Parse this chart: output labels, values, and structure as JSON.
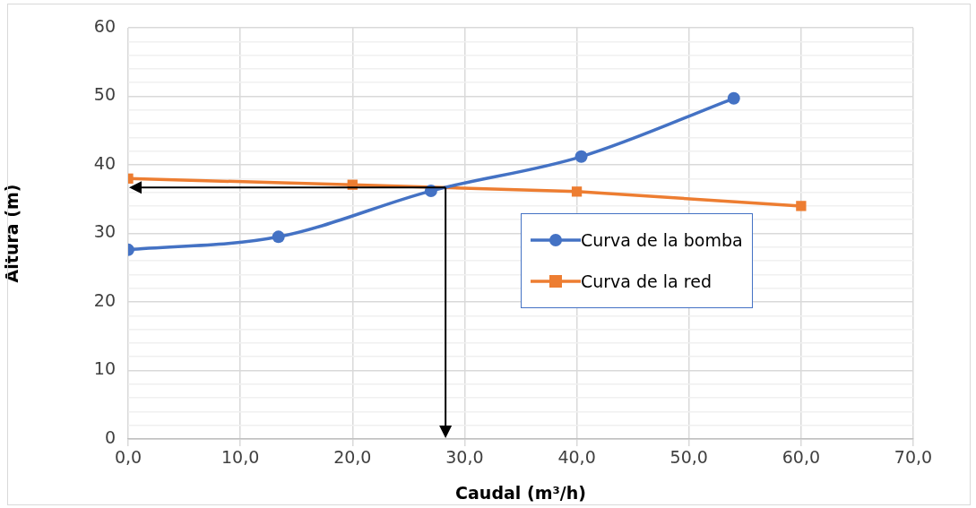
{
  "chart_data": {
    "type": "line",
    "xlabel": "Caudal (m³/h)",
    "ylabel": "Altura (m)",
    "xlim": [
      0,
      70
    ],
    "xticks": [
      {
        "value": 0,
        "label": "0,0"
      },
      {
        "value": 10,
        "label": "10,0"
      },
      {
        "value": 20,
        "label": "20,0"
      },
      {
        "value": 30,
        "label": "30,0"
      },
      {
        "value": 40,
        "label": "40,0"
      },
      {
        "value": 50,
        "label": "50,0"
      },
      {
        "value": 60,
        "label": "60,0"
      },
      {
        "value": 70,
        "label": "70,0"
      }
    ],
    "ylim": [
      0,
      60
    ],
    "yticks": [
      0,
      {
        "value": 2,
        "label": null
      },
      {
        "value": 4,
        "label": null
      },
      {
        "value": 6,
        "label": null
      },
      {
        "value": 8,
        "label": null
      },
      10,
      {
        "value": 12,
        "label": null
      },
      {
        "value": 14,
        "label": null
      },
      {
        "value": 16,
        "label": null
      },
      {
        "value": 18,
        "label": null
      },
      20,
      {
        "value": 22,
        "label": null
      },
      {
        "value": 24,
        "label": null
      },
      {
        "value": 26,
        "label": null
      },
      {
        "value": 28,
        "label": null
      },
      30,
      {
        "value": 32,
        "label": null
      },
      {
        "value": 34,
        "label": null
      },
      {
        "value": 36,
        "label": null
      },
      {
        "value": 38,
        "label": null
      },
      40,
      {
        "value": 42,
        "label": null
      },
      {
        "value": 44,
        "label": null
      },
      {
        "value": 46,
        "label": null
      },
      {
        "value": 48,
        "label": null
      },
      50,
      {
        "value": 52,
        "label": null
      },
      {
        "value": 54,
        "label": null
      },
      {
        "value": 56,
        "label": null
      },
      {
        "value": 58,
        "label": null
      },
      60
    ],
    "grid": true,
    "legend": "right",
    "series": [
      {
        "name": "Curva de la bomba",
        "color": "#4472c4",
        "marker": "circle",
        "x": [
          0,
          13.4,
          27,
          40.4,
          54
        ],
        "values": [
          27.6,
          29.5,
          36.2,
          41.2,
          49.7
        ]
      },
      {
        "name": "Curva de la red",
        "color": "#ed7d31",
        "marker": "square",
        "x": [
          0,
          20,
          40,
          60
        ],
        "values": [
          38,
          37.1,
          36.1,
          34
        ]
      }
    ]
  }
}
